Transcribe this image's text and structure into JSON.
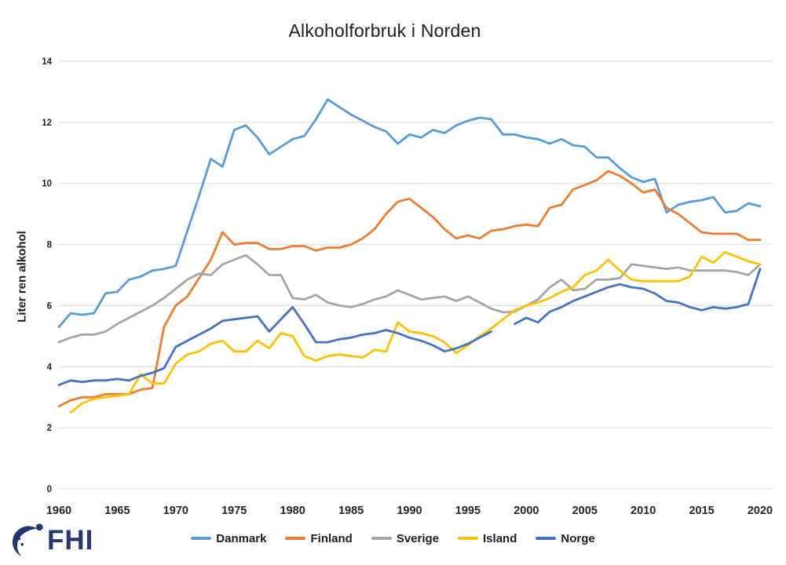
{
  "title": "Alkoholforbruk i Norden",
  "logo": {
    "text": "FHI",
    "color": "#24386E",
    "icon": "fhi-swoosh-icon"
  },
  "colors": {
    "background": "#FFFFFF",
    "gridline": "#D9D9D9",
    "axis_text": "#262626",
    "title_text": "#1D1D1D"
  },
  "chart_data": {
    "type": "line",
    "title": "Alkoholforbruk i Norden",
    "xlabel": "",
    "ylabel": "Liter ren alkohol",
    "ylim": [
      0,
      14
    ],
    "xlim": [
      1960,
      2020
    ],
    "grid": "horizontal",
    "legend_position": "bottom",
    "yticks": [
      0,
      2,
      4,
      6,
      8,
      10,
      12,
      14
    ],
    "xticks": [
      1960,
      1965,
      1970,
      1975,
      1980,
      1985,
      1990,
      1995,
      2000,
      2005,
      2010,
      2015,
      2020
    ],
    "x": [
      1960,
      1961,
      1962,
      1963,
      1964,
      1965,
      1966,
      1967,
      1968,
      1969,
      1970,
      1971,
      1972,
      1973,
      1974,
      1975,
      1976,
      1977,
      1978,
      1979,
      1980,
      1981,
      1982,
      1983,
      1984,
      1985,
      1986,
      1987,
      1988,
      1989,
      1990,
      1991,
      1992,
      1993,
      1994,
      1995,
      1996,
      1997,
      1998,
      1999,
      2000,
      2001,
      2002,
      2003,
      2004,
      2005,
      2006,
      2007,
      2008,
      2009,
      2010,
      2011,
      2012,
      2013,
      2014,
      2015,
      2016,
      2017,
      2018,
      2019,
      2020
    ],
    "series": [
      {
        "name": "Danmark",
        "color": "#5B9BD5",
        "values": [
          5.3,
          5.75,
          5.7,
          5.75,
          6.4,
          6.45,
          6.85,
          6.95,
          7.15,
          7.2,
          7.3,
          8.45,
          9.6,
          10.8,
          10.55,
          11.75,
          11.9,
          11.5,
          10.95,
          11.2,
          11.45,
          11.55,
          12.1,
          12.75,
          12.5,
          12.25,
          12.05,
          11.85,
          11.7,
          11.3,
          11.6,
          11.5,
          11.75,
          11.65,
          11.9,
          12.05,
          12.15,
          12.1,
          11.6,
          11.6,
          11.5,
          11.45,
          11.3,
          11.45,
          11.25,
          11.2,
          10.85,
          10.85,
          10.5,
          10.2,
          10.05,
          10.15,
          9.05,
          9.3,
          9.4,
          9.45,
          9.55,
          9.05,
          9.1,
          9.35,
          9.25
        ]
      },
      {
        "name": "Finland",
        "color": "#ED7D31",
        "values": [
          2.7,
          2.9,
          3.0,
          3.0,
          3.1,
          3.1,
          3.1,
          3.25,
          3.3,
          5.3,
          6.0,
          6.3,
          6.9,
          7.5,
          8.4,
          8.0,
          8.05,
          8.05,
          7.85,
          7.85,
          7.95,
          7.95,
          7.8,
          7.9,
          7.9,
          8.0,
          8.2,
          8.5,
          9.0,
          9.4,
          9.5,
          9.2,
          8.9,
          8.5,
          8.2,
          8.3,
          8.2,
          8.45,
          8.5,
          8.6,
          8.65,
          8.6,
          9.2,
          9.3,
          9.8,
          9.95,
          10.1,
          10.4,
          10.25,
          10.0,
          9.7,
          9.8,
          9.2,
          9.0,
          8.7,
          8.4,
          8.35,
          8.35,
          8.35,
          8.15,
          8.15
        ]
      },
      {
        "name": "Sverige",
        "color": "#A5A5A5",
        "values": [
          4.8,
          4.95,
          5.05,
          5.05,
          5.15,
          5.4,
          5.6,
          5.8,
          6.0,
          6.25,
          6.55,
          6.85,
          7.05,
          7.0,
          7.35,
          7.5,
          7.65,
          7.35,
          7.0,
          7.0,
          6.25,
          6.2,
          6.35,
          6.1,
          6.0,
          5.95,
          6.05,
          6.2,
          6.3,
          6.5,
          6.35,
          6.2,
          6.25,
          6.3,
          6.15,
          6.3,
          6.1,
          5.9,
          5.78,
          5.8,
          6.0,
          6.2,
          6.6,
          6.85,
          6.5,
          6.55,
          6.85,
          6.85,
          6.9,
          7.35,
          7.3,
          7.25,
          7.2,
          7.25,
          7.15,
          7.15,
          7.15,
          7.15,
          7.1,
          7.0,
          7.35
        ]
      },
      {
        "name": "Island",
        "color": "#FFC000",
        "values": [
          null,
          2.5,
          2.8,
          2.95,
          3.0,
          3.05,
          3.1,
          3.75,
          3.45,
          3.45,
          4.1,
          4.4,
          4.5,
          4.75,
          4.85,
          4.5,
          4.5,
          4.85,
          4.6,
          5.1,
          5.0,
          4.35,
          4.2,
          4.35,
          4.4,
          4.35,
          4.3,
          4.55,
          4.5,
          5.45,
          5.15,
          5.1,
          5.0,
          4.8,
          4.45,
          4.7,
          5.0,
          5.25,
          5.55,
          5.85,
          6.0,
          6.1,
          6.25,
          6.45,
          6.6,
          7.0,
          7.15,
          7.5,
          7.15,
          6.85,
          6.8,
          6.8,
          6.8,
          6.8,
          6.95,
          7.6,
          7.4,
          7.75,
          7.6,
          7.45,
          7.35
        ]
      },
      {
        "name": "Norge",
        "color": "#4472C4",
        "values": [
          3.4,
          3.55,
          3.5,
          3.55,
          3.55,
          3.6,
          3.55,
          3.7,
          3.8,
          3.95,
          4.65,
          4.85,
          5.05,
          5.25,
          5.5,
          5.55,
          5.6,
          5.65,
          5.15,
          5.55,
          5.95,
          5.4,
          4.8,
          4.8,
          4.9,
          4.95,
          5.05,
          5.1,
          5.2,
          5.1,
          4.95,
          4.85,
          4.7,
          4.5,
          4.6,
          4.75,
          4.95,
          5.15,
          null,
          5.4,
          5.6,
          5.45,
          5.8,
          5.95,
          6.15,
          6.3,
          6.45,
          6.6,
          6.7,
          6.6,
          6.55,
          6.4,
          6.15,
          6.1,
          5.95,
          5.85,
          5.95,
          5.9,
          5.95,
          6.05,
          7.2
        ]
      }
    ]
  }
}
